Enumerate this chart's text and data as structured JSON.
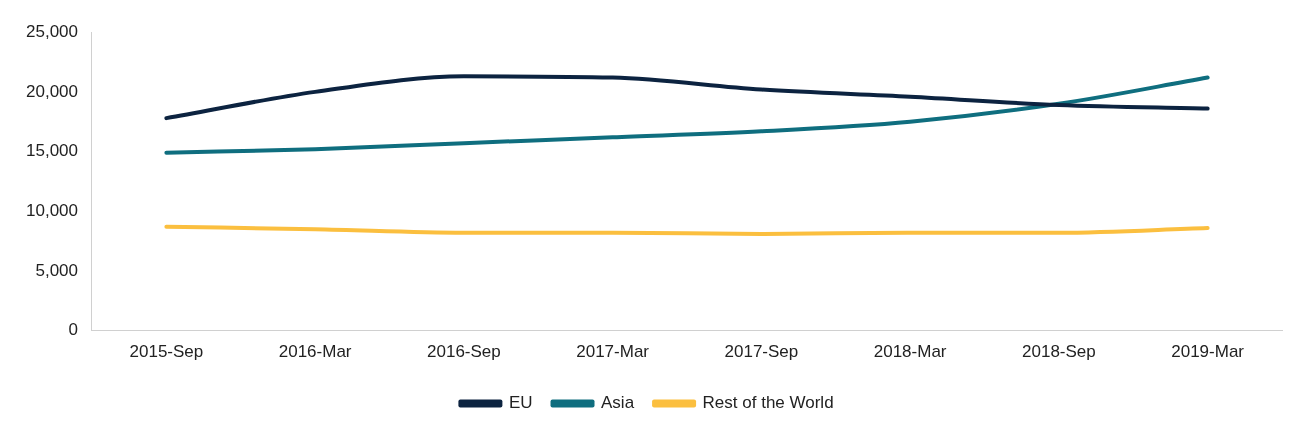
{
  "chart_data": {
    "type": "line",
    "categories": [
      "2015-Sep",
      "2016-Mar",
      "2016-Sep",
      "2017-Mar",
      "2017-Sep",
      "2018-Mar",
      "2018-Sep",
      "2019-Mar"
    ],
    "series": [
      {
        "name": "EU",
        "color": "#0c2340",
        "values": [
          17800,
          20000,
          21300,
          21200,
          20200,
          19600,
          18900,
          18600
        ]
      },
      {
        "name": "Asia",
        "color": "#0f6e7f",
        "values": [
          14900,
          15200,
          15700,
          16200,
          16700,
          17500,
          19000,
          21200
        ]
      },
      {
        "name": "Rest of the World",
        "color": "#fbbf3f",
        "values": [
          8700,
          8500,
          8200,
          8200,
          8100,
          8200,
          8200,
          8600
        ]
      }
    ],
    "ylim": [
      0,
      25000
    ],
    "yticks": [
      0,
      {
        "value": 5000,
        "label": "5,000"
      },
      {
        "value": 10000,
        "label": "10,000"
      },
      {
        "value": 15000,
        "label": "15,000"
      },
      {
        "value": 20000,
        "label": "20,000"
      },
      {
        "value": 25000,
        "label": "25,000"
      }
    ],
    "grid": false,
    "legend": "bottom",
    "marker": "none",
    "line_style": "solid"
  }
}
